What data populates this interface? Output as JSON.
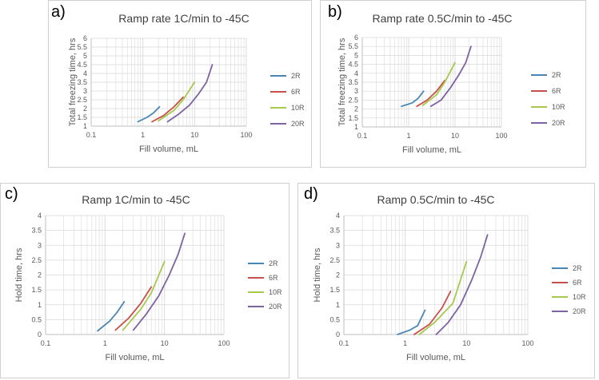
{
  "figure": {
    "panel_labels": [
      "a)",
      "b)",
      "c)",
      "d)"
    ]
  },
  "style": {
    "series_colors": {
      "2R": "#4a86b4",
      "6R": "#c8504b",
      "10R": "#a8c84e",
      "20R": "#7e62a2"
    },
    "grid_color": "#d9d9d9",
    "axis_color": "#bfbfbf",
    "text_color": "#595959"
  },
  "chart_data": [
    {
      "panel": "a)",
      "type": "line",
      "title": "Ramp rate 1C/min to -45C",
      "xlabel": "Fill volume, mL",
      "ylabel": "Total freezing time, hrs",
      "xscale": "log",
      "xlim": [
        0.1,
        100
      ],
      "xticks": [
        "0.1",
        "1",
        "10",
        "100"
      ],
      "ylim": [
        1,
        6
      ],
      "yticks": [
        "1",
        "1.5",
        "2",
        "2.5",
        "3",
        "3.5",
        "4",
        "4.5",
        "5",
        "5.5",
        "6"
      ],
      "legend_position": "right",
      "series": [
        {
          "name": "2R",
          "x": [
            0.8,
            1.2,
            1.6,
            2.1
          ],
          "y": [
            1.25,
            1.5,
            1.75,
            2.1
          ]
        },
        {
          "name": "6R",
          "x": [
            1.5,
            2.5,
            4,
            6
          ],
          "y": [
            1.25,
            1.6,
            2.1,
            2.65
          ]
        },
        {
          "name": "10R",
          "x": [
            2,
            4,
            6,
            10
          ],
          "y": [
            1.3,
            1.9,
            2.5,
            3.5
          ]
        },
        {
          "name": "20R",
          "x": [
            3,
            5,
            8,
            12,
            17,
            22
          ],
          "y": [
            1.25,
            1.7,
            2.2,
            2.85,
            3.5,
            4.5
          ]
        }
      ]
    },
    {
      "panel": "b)",
      "type": "line",
      "title": "Ramp rate 0.5C/min to -45C",
      "xlabel": "Fill volume, mL",
      "ylabel": "Total freezing time, hrs",
      "xscale": "log",
      "xlim": [
        0.1,
        100
      ],
      "xticks": [
        "0.1",
        "1",
        "10",
        "100"
      ],
      "ylim": [
        1,
        6
      ],
      "yticks": [
        "1",
        "1.5",
        "2",
        "2.5",
        "3",
        "3.5",
        "4",
        "4.5",
        "5",
        "5.5",
        "6"
      ],
      "legend_position": "right",
      "series": [
        {
          "name": "2R",
          "x": [
            0.7,
            1.2,
            1.6,
            2.1
          ],
          "y": [
            2.15,
            2.35,
            2.6,
            3.0
          ]
        },
        {
          "name": "6R",
          "x": [
            1.5,
            2.5,
            4,
            6
          ],
          "y": [
            2.15,
            2.5,
            3.0,
            3.6
          ]
        },
        {
          "name": "10R",
          "x": [
            2,
            4,
            6,
            10
          ],
          "y": [
            2.2,
            2.8,
            3.5,
            4.6
          ]
        },
        {
          "name": "20R",
          "x": [
            3,
            5,
            8,
            12,
            17,
            22
          ],
          "y": [
            2.15,
            2.5,
            3.2,
            3.9,
            4.6,
            5.5
          ]
        }
      ]
    },
    {
      "panel": "c)",
      "type": "line",
      "title": "Ramp 1C/min to -45C",
      "xlabel": "Fill volume, mL",
      "ylabel": "Hold time, hrs",
      "xscale": "log",
      "xlim": [
        0.1,
        100
      ],
      "xticks": [
        "0.1",
        "1",
        "10",
        "100"
      ],
      "ylim": [
        0,
        4
      ],
      "yticks": [
        "0",
        "0.5",
        "1",
        "1.5",
        "2",
        "2.5",
        "3",
        "3.5",
        "4"
      ],
      "legend_position": "right",
      "series": [
        {
          "name": "2R",
          "x": [
            0.75,
            1.2,
            1.6,
            2.1
          ],
          "y": [
            0.12,
            0.45,
            0.75,
            1.1
          ]
        },
        {
          "name": "6R",
          "x": [
            1.5,
            2.5,
            4,
            6
          ],
          "y": [
            0.15,
            0.55,
            1.05,
            1.6
          ]
        },
        {
          "name": "10R",
          "x": [
            2,
            4,
            6,
            10
          ],
          "y": [
            0.15,
            0.85,
            1.4,
            2.45
          ]
        },
        {
          "name": "20R",
          "x": [
            3,
            5,
            8,
            12,
            17,
            22
          ],
          "y": [
            0.15,
            0.7,
            1.3,
            2.0,
            2.7,
            3.4
          ]
        }
      ]
    },
    {
      "panel": "d)",
      "type": "line",
      "title": "Ramp 0.5C/min to -45C",
      "xlabel": "Fill volume, mL",
      "ylabel": "Hold time, hrs",
      "xscale": "log",
      "xlim": [
        0.1,
        100
      ],
      "xticks": [
        "0.1",
        "1",
        "10",
        "100"
      ],
      "ylim": [
        0,
        4
      ],
      "yticks": [
        "0",
        "0.5",
        "1",
        "1.5",
        "2",
        "2.5",
        "3",
        "3.5",
        "4"
      ],
      "legend_position": "right",
      "series": [
        {
          "name": "2R",
          "x": [
            0.75,
            1.2,
            1.6,
            2.1
          ],
          "y": [
            0.0,
            0.15,
            0.3,
            0.82
          ]
        },
        {
          "name": "6R",
          "x": [
            1.4,
            2.5,
            4,
            5.5
          ],
          "y": [
            0.0,
            0.35,
            0.9,
            1.45
          ]
        },
        {
          "name": "10R",
          "x": [
            1.7,
            3,
            6,
            10
          ],
          "y": [
            0.0,
            0.4,
            1.05,
            2.45
          ]
        },
        {
          "name": "20R",
          "x": [
            3.2,
            5,
            8,
            12,
            17,
            22
          ],
          "y": [
            0.0,
            0.4,
            1.0,
            1.8,
            2.6,
            3.35
          ]
        }
      ]
    }
  ]
}
